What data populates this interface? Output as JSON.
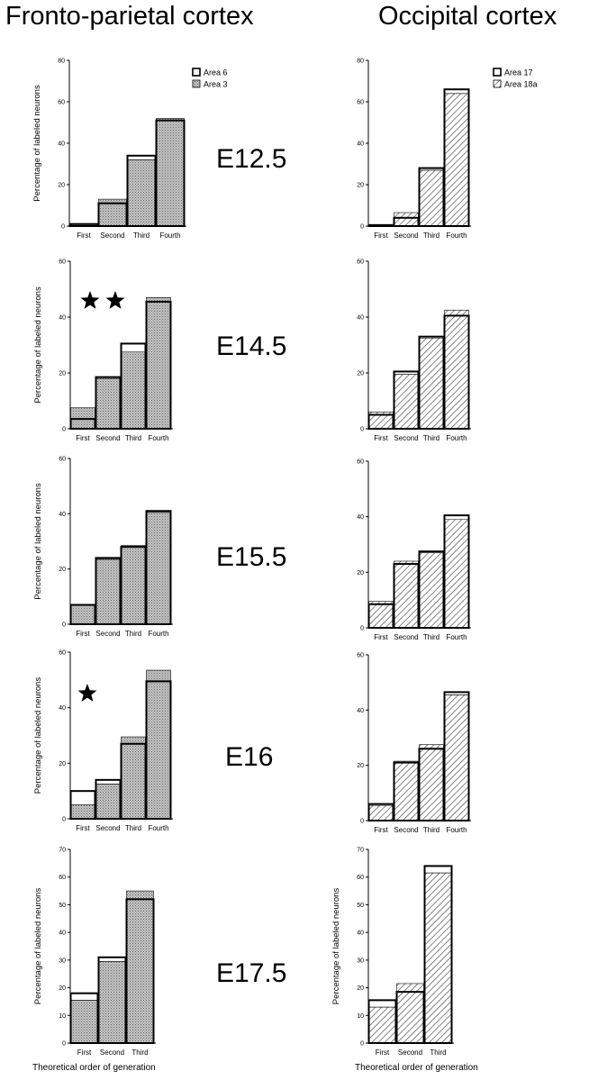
{
  "columns": [
    "Fronto-parietal cortex",
    "Occipital cortex"
  ],
  "x_axis_title": "Theoretical order of generation",
  "legends": {
    "left": [
      "Area 6",
      "Area 3"
    ],
    "right": [
      "Area 17",
      "Area 18a"
    ]
  },
  "colors": {
    "outline": "#000000",
    "area_white": "#ffffff",
    "area3_fill": "#b8b8b8",
    "hatch": "#444444"
  },
  "chart_data": [
    {
      "type": "bar",
      "stage": "E12.5",
      "column": "Fronto-parietal cortex",
      "ylabel": "Percentage of labeled neurons",
      "ylim": [
        0,
        80
      ],
      "yticks": [
        0,
        20,
        40,
        60,
        80
      ],
      "categories": [
        "First",
        "Second",
        "Third",
        "Fourth"
      ],
      "legend": "top-right",
      "series": [
        {
          "name": "Area 6",
          "values": [
            1,
            11,
            34,
            51
          ]
        },
        {
          "name": "Area 3",
          "values": [
            1,
            13,
            32,
            52
          ]
        }
      ],
      "stars": 0
    },
    {
      "type": "bar",
      "stage": "E12.5",
      "column": "Occipital cortex",
      "ylabel": "",
      "ylim": [
        0,
        80
      ],
      "yticks": [
        0,
        20,
        40,
        60,
        80
      ],
      "categories": [
        "First",
        "Second",
        "Third",
        "Fourth"
      ],
      "legend": "top-left",
      "series": [
        {
          "name": "Area 17",
          "values": [
            0.5,
            4,
            28,
            66
          ]
        },
        {
          "name": "Area 18a",
          "values": [
            0.5,
            6.5,
            27,
            64
          ]
        }
      ],
      "stars": 0
    },
    {
      "type": "bar",
      "stage": "E14.5",
      "column": "Fronto-parietal cortex",
      "ylabel": "Percentage of labeled neurons",
      "ylim": [
        0,
        60
      ],
      "yticks": [
        0,
        20,
        40,
        60
      ],
      "categories": [
        "First",
        "Second",
        "Third",
        "Fourth"
      ],
      "series": [
        {
          "name": "Area 6",
          "values": [
            3.5,
            18.5,
            30.5,
            45.5
          ]
        },
        {
          "name": "Area 3",
          "values": [
            7.5,
            18,
            27.5,
            47
          ]
        }
      ],
      "stars": 2
    },
    {
      "type": "bar",
      "stage": "E14.5",
      "column": "Occipital cortex",
      "ylabel": "",
      "ylim": [
        0,
        60
      ],
      "yticks": [
        0,
        20,
        40,
        60
      ],
      "categories": [
        "First",
        "Second",
        "Third",
        "Fourth"
      ],
      "series": [
        {
          "name": "Area 17",
          "values": [
            5,
            20.5,
            33,
            40.5
          ]
        },
        {
          "name": "Area 18a",
          "values": [
            6,
            19.5,
            32.5,
            42.5
          ]
        }
      ],
      "stars": 0
    },
    {
      "type": "bar",
      "stage": "E15.5",
      "column": "Fronto-parietal cortex",
      "ylabel": "Percentage of labeled neurons",
      "ylim": [
        0,
        60
      ],
      "yticks": [
        0,
        20,
        40,
        60
      ],
      "categories": [
        "First",
        "Second",
        "Third",
        "Fourth"
      ],
      "series": [
        {
          "name": "Area 6",
          "values": [
            7,
            24,
            28,
            41
          ]
        },
        {
          "name": "Area 3",
          "values": [
            7,
            23.5,
            28.5,
            40.5
          ]
        }
      ],
      "stars": 0
    },
    {
      "type": "bar",
      "stage": "E15.5",
      "column": "Occipital cortex",
      "ylabel": "",
      "ylim": [
        0,
        60
      ],
      "yticks": [
        0,
        20,
        40,
        60
      ],
      "categories": [
        "First",
        "Second",
        "Third",
        "Fourth"
      ],
      "series": [
        {
          "name": "Area 17",
          "values": [
            8.5,
            23,
            27.5,
            40.5
          ]
        },
        {
          "name": "Area 18a",
          "values": [
            9.5,
            24,
            27,
            39
          ]
        }
      ],
      "stars": 0
    },
    {
      "type": "bar",
      "stage": "E16",
      "column": "Fronto-parietal cortex",
      "ylabel": "Percentage of labeled neurons",
      "ylim": [
        0,
        60
      ],
      "yticks": [
        0,
        20,
        40,
        60
      ],
      "categories": [
        "First",
        "Second",
        "Third",
        "Fourth"
      ],
      "series": [
        {
          "name": "Area 6",
          "values": [
            10,
            14,
            27,
            49.5
          ]
        },
        {
          "name": "Area 3",
          "values": [
            5,
            12.5,
            29.5,
            53.5
          ]
        }
      ],
      "stars": 1
    },
    {
      "type": "bar",
      "stage": "E16",
      "column": "Occipital cortex",
      "ylabel": "",
      "ylim": [
        0,
        60
      ],
      "yticks": [
        0,
        20,
        40,
        60
      ],
      "categories": [
        "First",
        "Second",
        "Third",
        "Fourth"
      ],
      "series": [
        {
          "name": "Area 17",
          "values": [
            6,
            21,
            26,
            46.5
          ]
        },
        {
          "name": "Area 18a",
          "values": [
            5.5,
            21.5,
            27.5,
            45.5
          ]
        }
      ],
      "stars": 0
    },
    {
      "type": "bar",
      "stage": "E17.5",
      "column": "Fronto-parietal cortex",
      "ylabel": "Percentage of labeled neurons",
      "ylim": [
        0,
        70
      ],
      "yticks": [
        0,
        10,
        20,
        30,
        40,
        50,
        60,
        70
      ],
      "categories": [
        "First",
        "Second",
        "Third"
      ],
      "series": [
        {
          "name": "Area 6",
          "values": [
            18,
            31,
            52
          ]
        },
        {
          "name": "Area 3",
          "values": [
            15.5,
            29.5,
            55
          ]
        }
      ],
      "stars": 0
    },
    {
      "type": "bar",
      "stage": "E17.5",
      "column": "Occipital cortex",
      "ylabel": "Percentage of labeled neurons",
      "ylim": [
        0,
        70
      ],
      "yticks": [
        0,
        10,
        20,
        30,
        40,
        50,
        60,
        70
      ],
      "categories": [
        "First",
        "Second",
        "Third"
      ],
      "series": [
        {
          "name": "Area 17",
          "values": [
            15.5,
            18.5,
            64
          ]
        },
        {
          "name": "Area 18a",
          "values": [
            13,
            21.5,
            61.5
          ]
        }
      ],
      "stars": 0
    }
  ]
}
